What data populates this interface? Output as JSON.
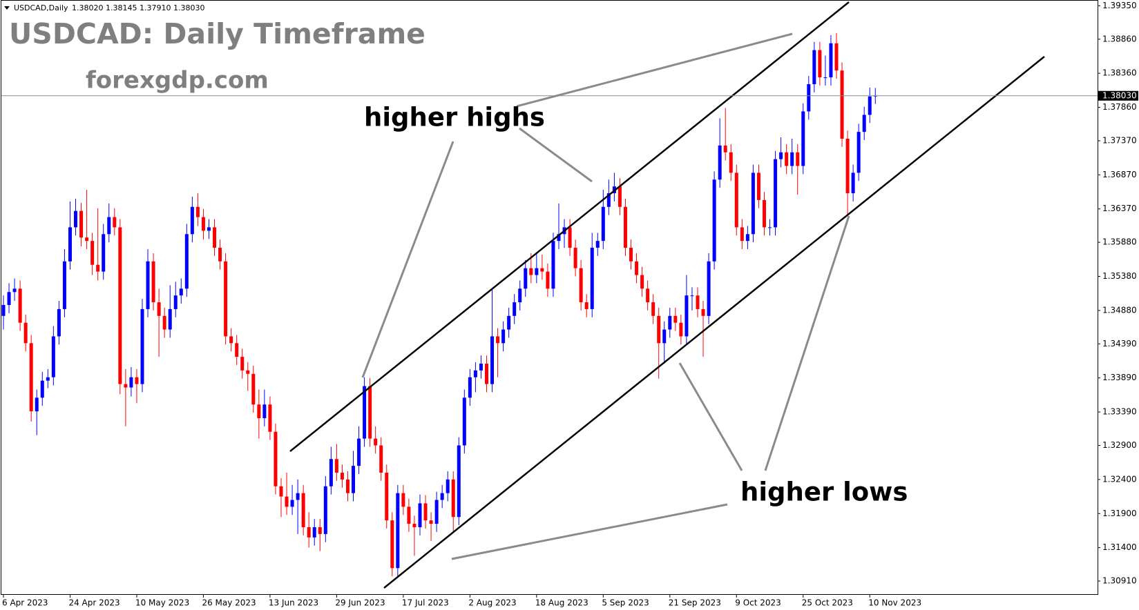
{
  "header": {
    "symbol": "USDCAD,Daily",
    "ohlc": "1.38020 1.38145 1.37910 1.38030"
  },
  "chart_data": {
    "type": "candlestick",
    "title": "USDCAD: Daily Timeframe",
    "subtitle": "forexgdp.com",
    "annotations": [
      "higher highs",
      "higher lows"
    ],
    "up_color": "#0000ff",
    "down_color": "#ff0000",
    "ylim": [
      1.30718,
      1.39435
    ],
    "yticks": [
      {
        "value": 1.3935,
        "label": "1.39350"
      },
      {
        "value": 1.3886,
        "label": "1.38860"
      },
      {
        "value": 1.3836,
        "label": "1.38360"
      },
      {
        "value": 1.3786,
        "label": "1.37860"
      },
      {
        "value": 1.3737,
        "label": "1.37370"
      },
      {
        "value": 1.3687,
        "label": "1.36870"
      },
      {
        "value": 1.3637,
        "label": "1.36370"
      },
      {
        "value": 1.3588,
        "label": "1.35880"
      },
      {
        "value": 1.3538,
        "label": "1.35380"
      },
      {
        "value": 1.3488,
        "label": "1.34880"
      },
      {
        "value": 1.3439,
        "label": "1.34390"
      },
      {
        "value": 1.3389,
        "label": "1.33890"
      },
      {
        "value": 1.3339,
        "label": "1.33390"
      },
      {
        "value": 1.329,
        "label": "1.32900"
      },
      {
        "value": 1.324,
        "label": "1.32400"
      },
      {
        "value": 1.319,
        "label": "1.31900"
      },
      {
        "value": 1.314,
        "label": "1.31400"
      },
      {
        "value": 1.3091,
        "label": "1.30910"
      }
    ],
    "current_price": {
      "value": 1.3803,
      "label": "1.38030"
    },
    "categories": [
      "6 Apr 2023",
      null,
      null,
      null,
      null,
      null,
      null,
      null,
      null,
      null,
      null,
      null,
      "24 Apr 2023",
      null,
      null,
      null,
      null,
      null,
      null,
      null,
      null,
      null,
      null,
      null,
      "10 May 2023",
      null,
      null,
      null,
      null,
      null,
      null,
      null,
      null,
      null,
      null,
      null,
      "26 May 2023",
      null,
      null,
      null,
      null,
      null,
      null,
      null,
      null,
      null,
      null,
      null,
      "13 Jun 2023",
      null,
      null,
      null,
      null,
      null,
      null,
      null,
      null,
      null,
      null,
      null,
      "29 Jun 2023",
      null,
      null,
      null,
      null,
      null,
      null,
      null,
      null,
      null,
      null,
      null,
      "17 Jul 2023",
      null,
      null,
      null,
      null,
      null,
      null,
      null,
      null,
      null,
      null,
      null,
      "2 Aug 2023",
      null,
      null,
      null,
      null,
      null,
      null,
      null,
      null,
      null,
      null,
      null,
      "18 Aug 2023",
      null,
      null,
      null,
      null,
      null,
      null,
      null,
      null,
      null,
      null,
      null,
      "5 Sep 2023",
      null,
      null,
      null,
      null,
      null,
      null,
      null,
      null,
      null,
      null,
      null,
      "21 Sep 2023",
      null,
      null,
      null,
      null,
      null,
      null,
      null,
      null,
      null,
      null,
      null,
      "9 Oct 2023",
      null,
      null,
      null,
      null,
      null,
      null,
      null,
      null,
      null,
      null,
      null,
      "25 Oct 2023",
      null,
      null,
      null,
      null,
      null,
      null,
      null,
      null,
      null,
      null,
      null,
      "10 Nov 2023",
      null
    ],
    "candles": [
      [
        1.348,
        1.351,
        1.346,
        1.3496
      ],
      [
        1.3496,
        1.3528,
        1.3484,
        1.3515
      ],
      [
        1.3515,
        1.3535,
        1.3502,
        1.352
      ],
      [
        1.352,
        1.3532,
        1.3458,
        1.347
      ],
      [
        1.347,
        1.3482,
        1.3428,
        1.344
      ],
      [
        1.344,
        1.3452,
        1.3325,
        1.334
      ],
      [
        1.334,
        1.3372,
        1.3305,
        1.336
      ],
      [
        1.336,
        1.3398,
        1.3348,
        1.3385
      ],
      [
        1.3385,
        1.3402,
        1.3374,
        1.339
      ],
      [
        1.339,
        1.3465,
        1.3378,
        1.345
      ],
      [
        1.345,
        1.3502,
        1.3438,
        1.349
      ],
      [
        1.349,
        1.3578,
        1.3478,
        1.356
      ],
      [
        1.356,
        1.3648,
        1.3548,
        1.361
      ],
      [
        1.361,
        1.3652,
        1.3598,
        1.3634
      ],
      [
        1.3634,
        1.3646,
        1.3582,
        1.3595
      ],
      [
        1.3595,
        1.3665,
        1.3578,
        1.359
      ],
      [
        1.359,
        1.3602,
        1.354,
        1.3555
      ],
      [
        1.3555,
        1.3638,
        1.3532,
        1.3545
      ],
      [
        1.3545,
        1.3615,
        1.3533,
        1.36
      ],
      [
        1.36,
        1.3645,
        1.3588,
        1.3625
      ],
      [
        1.3625,
        1.3638,
        1.3598,
        1.361
      ],
      [
        1.361,
        1.3622,
        1.3365,
        1.338
      ],
      [
        1.338,
        1.3402,
        1.3318,
        1.3375
      ],
      [
        1.3375,
        1.3405,
        1.3362,
        1.339
      ],
      [
        1.339,
        1.3402,
        1.3352,
        1.338
      ],
      [
        1.338,
        1.3505,
        1.3368,
        1.349
      ],
      [
        1.349,
        1.3578,
        1.3478,
        1.356
      ],
      [
        1.356,
        1.3572,
        1.3488,
        1.35
      ],
      [
        1.35,
        1.352,
        1.342,
        1.348
      ],
      [
        1.348,
        1.3492,
        1.3448,
        1.346
      ],
      [
        1.346,
        1.3525,
        1.3448,
        1.349
      ],
      [
        1.349,
        1.353,
        1.3478,
        1.351
      ],
      [
        1.351,
        1.3535,
        1.3498,
        1.352
      ],
      [
        1.352,
        1.3615,
        1.3508,
        1.36
      ],
      [
        1.36,
        1.3655,
        1.3588,
        1.364
      ],
      [
        1.364,
        1.366,
        1.3612,
        1.3625
      ],
      [
        1.3625,
        1.3637,
        1.3592,
        1.3605
      ],
      [
        1.3605,
        1.3622,
        1.3593,
        1.361
      ],
      [
        1.361,
        1.3622,
        1.3568,
        1.358
      ],
      [
        1.358,
        1.3592,
        1.3548,
        1.356
      ],
      [
        1.356,
        1.3572,
        1.3438,
        1.345
      ],
      [
        1.345,
        1.3462,
        1.3428,
        1.344
      ],
      [
        1.344,
        1.3452,
        1.3408,
        1.342
      ],
      [
        1.342,
        1.3432,
        1.3388,
        1.34
      ],
      [
        1.34,
        1.3412,
        1.337,
        1.3395
      ],
      [
        1.3395,
        1.3407,
        1.3338,
        1.335
      ],
      [
        1.335,
        1.3372,
        1.33,
        1.333
      ],
      [
        1.333,
        1.3372,
        1.3318,
        1.335
      ],
      [
        1.335,
        1.3362,
        1.3298,
        1.331
      ],
      [
        1.331,
        1.3322,
        1.3218,
        1.323
      ],
      [
        1.323,
        1.3242,
        1.3185,
        1.3215
      ],
      [
        1.3215,
        1.325,
        1.3188,
        1.32
      ],
      [
        1.32,
        1.3232,
        1.3188,
        1.321
      ],
      [
        1.321,
        1.324,
        1.316,
        1.322
      ],
      [
        1.322,
        1.3232,
        1.3158,
        1.317
      ],
      [
        1.317,
        1.3192,
        1.314,
        1.3155
      ],
      [
        1.3155,
        1.3182,
        1.3143,
        1.317
      ],
      [
        1.317,
        1.3182,
        1.3135,
        1.316
      ],
      [
        1.316,
        1.3245,
        1.3148,
        1.323
      ],
      [
        1.323,
        1.3288,
        1.3218,
        1.327
      ],
      [
        1.327,
        1.3292,
        1.3238,
        1.325
      ],
      [
        1.325,
        1.3262,
        1.3228,
        1.324
      ],
      [
        1.324,
        1.3252,
        1.3208,
        1.322
      ],
      [
        1.322,
        1.3282,
        1.3208,
        1.326
      ],
      [
        1.326,
        1.3318,
        1.3248,
        1.33
      ],
      [
        1.33,
        1.339,
        1.3288,
        1.3377
      ],
      [
        1.3377,
        1.3389,
        1.3288,
        1.33
      ],
      [
        1.33,
        1.3318,
        1.3278,
        1.329
      ],
      [
        1.329,
        1.3302,
        1.3238,
        1.325
      ],
      [
        1.325,
        1.3262,
        1.3168,
        1.318
      ],
      [
        1.318,
        1.3192,
        1.3098,
        1.311
      ],
      [
        1.311,
        1.3232,
        1.3098,
        1.322
      ],
      [
        1.322,
        1.3232,
        1.3188,
        1.32
      ],
      [
        1.32,
        1.3212,
        1.3163,
        1.3175
      ],
      [
        1.3175,
        1.3187,
        1.3128,
        1.317
      ],
      [
        1.317,
        1.3218,
        1.3158,
        1.3205
      ],
      [
        1.3205,
        1.3217,
        1.3168,
        1.318
      ],
      [
        1.318,
        1.3192,
        1.315,
        1.3175
      ],
      [
        1.3175,
        1.3222,
        1.3163,
        1.321
      ],
      [
        1.321,
        1.3232,
        1.3198,
        1.322
      ],
      [
        1.322,
        1.3252,
        1.3208,
        1.324
      ],
      [
        1.324,
        1.3252,
        1.3163,
        1.3185
      ],
      [
        1.3185,
        1.3302,
        1.3173,
        1.329
      ],
      [
        1.329,
        1.3372,
        1.3278,
        1.336
      ],
      [
        1.336,
        1.3402,
        1.3348,
        1.339
      ],
      [
        1.339,
        1.3412,
        1.3368,
        1.34
      ],
      [
        1.34,
        1.3422,
        1.3388,
        1.341
      ],
      [
        1.341,
        1.3422,
        1.3368,
        1.338
      ],
      [
        1.338,
        1.352,
        1.3368,
        1.345
      ],
      [
        1.345,
        1.3462,
        1.339,
        1.344
      ],
      [
        1.344,
        1.3472,
        1.3428,
        1.346
      ],
      [
        1.346,
        1.3492,
        1.3448,
        1.348
      ],
      [
        1.348,
        1.3512,
        1.3468,
        1.35
      ],
      [
        1.35,
        1.3532,
        1.3488,
        1.352
      ],
      [
        1.352,
        1.3562,
        1.3508,
        1.355
      ],
      [
        1.355,
        1.3572,
        1.3528,
        1.354
      ],
      [
        1.354,
        1.3572,
        1.3528,
        1.355
      ],
      [
        1.355,
        1.357,
        1.3533,
        1.3545
      ],
      [
        1.3545,
        1.3557,
        1.3508,
        1.352
      ],
      [
        1.352,
        1.3602,
        1.3508,
        1.359
      ],
      [
        1.359,
        1.3645,
        1.3578,
        1.36
      ],
      [
        1.36,
        1.3622,
        1.358,
        1.361
      ],
      [
        1.361,
        1.3622,
        1.3568,
        1.358
      ],
      [
        1.358,
        1.3592,
        1.3538,
        1.355
      ],
      [
        1.355,
        1.3562,
        1.3488,
        1.35
      ],
      [
        1.35,
        1.3512,
        1.3478,
        1.349
      ],
      [
        1.349,
        1.3602,
        1.3478,
        1.358
      ],
      [
        1.358,
        1.3602,
        1.3568,
        1.359
      ],
      [
        1.359,
        1.3665,
        1.3578,
        1.364
      ],
      [
        1.364,
        1.368,
        1.3628,
        1.366
      ],
      [
        1.366,
        1.369,
        1.3648,
        1.367
      ],
      [
        1.367,
        1.3682,
        1.3628,
        1.364
      ],
      [
        1.364,
        1.3652,
        1.3568,
        1.358
      ],
      [
        1.358,
        1.3592,
        1.3548,
        1.356
      ],
      [
        1.356,
        1.3572,
        1.3528,
        1.354
      ],
      [
        1.354,
        1.3552,
        1.3508,
        1.352
      ],
      [
        1.352,
        1.3532,
        1.3488,
        1.35
      ],
      [
        1.35,
        1.3512,
        1.3468,
        1.348
      ],
      [
        1.348,
        1.3492,
        1.3388,
        1.344
      ],
      [
        1.344,
        1.3472,
        1.341,
        1.346
      ],
      [
        1.346,
        1.3492,
        1.3448,
        1.348
      ],
      [
        1.348,
        1.3492,
        1.3458,
        1.347
      ],
      [
        1.347,
        1.3482,
        1.3438,
        1.345
      ],
      [
        1.345,
        1.354,
        1.3438,
        1.351
      ],
      [
        1.351,
        1.3522,
        1.3488,
        1.351
      ],
      [
        1.351,
        1.3522,
        1.3478,
        1.349
      ],
      [
        1.349,
        1.3502,
        1.342,
        1.348
      ],
      [
        1.348,
        1.3572,
        1.3468,
        1.356
      ],
      [
        1.356,
        1.3692,
        1.3548,
        1.368
      ],
      [
        1.368,
        1.377,
        1.3668,
        1.373
      ],
      [
        1.373,
        1.3785,
        1.3708,
        1.372
      ],
      [
        1.372,
        1.3732,
        1.3678,
        1.369
      ],
      [
        1.369,
        1.3702,
        1.3598,
        1.361
      ],
      [
        1.361,
        1.3622,
        1.3578,
        1.359
      ],
      [
        1.359,
        1.3612,
        1.3578,
        1.36
      ],
      [
        1.36,
        1.3702,
        1.3588,
        1.369
      ],
      [
        1.369,
        1.3702,
        1.3638,
        1.365
      ],
      [
        1.365,
        1.3662,
        1.3598,
        1.361
      ],
      [
        1.361,
        1.3622,
        1.3598,
        1.361
      ],
      [
        1.361,
        1.3722,
        1.3598,
        1.371
      ],
      [
        1.371,
        1.3742,
        1.3698,
        1.372
      ],
      [
        1.372,
        1.3732,
        1.3688,
        1.37
      ],
      [
        1.37,
        1.374,
        1.3688,
        1.372
      ],
      [
        1.372,
        1.3732,
        1.3658,
        1.37
      ],
      [
        1.37,
        1.3792,
        1.3688,
        1.378
      ],
      [
        1.378,
        1.3832,
        1.3768,
        1.382
      ],
      [
        1.382,
        1.3882,
        1.3808,
        1.387
      ],
      [
        1.387,
        1.3882,
        1.3818,
        1.383
      ],
      [
        1.383,
        1.3862,
        1.3818,
        1.383
      ],
      [
        1.383,
        1.3892,
        1.3818,
        1.388
      ],
      [
        1.388,
        1.3895,
        1.3828,
        1.384
      ],
      [
        1.384,
        1.3852,
        1.3728,
        1.374
      ],
      [
        1.374,
        1.3752,
        1.3628,
        1.366
      ],
      [
        1.366,
        1.3702,
        1.3648,
        1.369
      ],
      [
        1.369,
        1.3762,
        1.3678,
        1.375
      ],
      [
        1.375,
        1.3787,
        1.3738,
        1.3775
      ],
      [
        1.3775,
        1.3815,
        1.3763,
        1.3802
      ],
      [
        1.3802,
        1.38145,
        1.3791,
        1.3803
      ]
    ]
  }
}
